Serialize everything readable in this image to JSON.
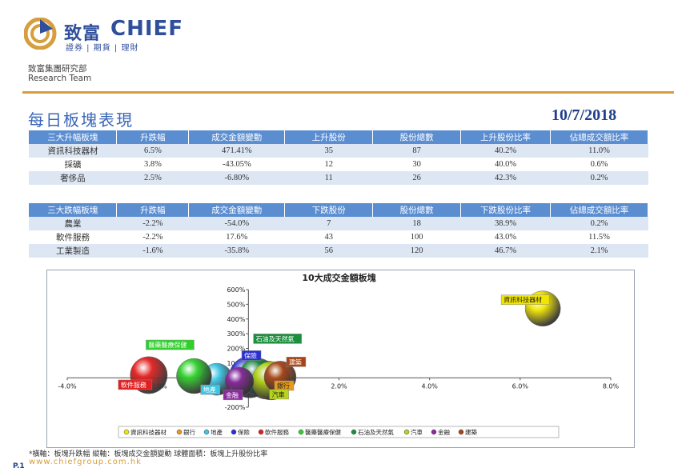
{
  "header": {
    "brand_cn": "致富",
    "brand_en": "CHIEF",
    "brand_sub": "證券 | 期貨 | 理財",
    "dept_cn": "致富集團研究部",
    "dept_en": "Research Team",
    "title": "每日板塊表現",
    "date": "10/7/2018",
    "accent_color": "#d69e3c",
    "brand_color": "#2f4f9c"
  },
  "table_up": {
    "headers": [
      "三大升幅板塊",
      "升跌幅",
      "成交金額變動",
      "上升股份",
      "股份總數",
      "上升股份比率",
      "佔總成交額比率"
    ],
    "rows": [
      [
        "資訊科技器材",
        "6.5%",
        "471.41%",
        "35",
        "87",
        "40.2%",
        "11.0%"
      ],
      [
        "採礦",
        "3.8%",
        "-43.05%",
        "12",
        "30",
        "40.0%",
        "0.6%"
      ],
      [
        "奢侈品",
        "2.5%",
        "-6.80%",
        "11",
        "26",
        "42.3%",
        "0.2%"
      ]
    ]
  },
  "table_down": {
    "headers": [
      "三大跌幅板塊",
      "升跌幅",
      "成交金額變動",
      "下跌股份",
      "股份總數",
      "下跌股份比率",
      "佔總成交額比率"
    ],
    "rows": [
      [
        "農業",
        "-2.2%",
        "-54.0%",
        "7",
        "18",
        "38.9%",
        "0.2%"
      ],
      [
        "軟件服務",
        "-2.2%",
        "17.6%",
        "43",
        "100",
        "43.0%",
        "11.5%"
      ],
      [
        "工業製造",
        "-1.6%",
        "-35.8%",
        "56",
        "120",
        "46.7%",
        "2.1%"
      ]
    ]
  },
  "chart_data": {
    "type": "scatter",
    "title": "10大成交金額板塊",
    "xlim": [
      -0.04,
      0.08
    ],
    "ylim": [
      -2,
      6
    ],
    "x_ticks": [
      "-4.0%",
      "-2.0%",
      "0.0%",
      "2.0%",
      "4.0%",
      "6.0%",
      "8.0%"
    ],
    "y_ticks": [
      "-200%",
      "-100%",
      "0%",
      "100%",
      "200%",
      "300%",
      "400%",
      "500%",
      "600%"
    ],
    "series": [
      {
        "name": "資訊科技器材",
        "x": 0.065,
        "y": 4.71,
        "size": 0.402,
        "color": "#f2e600"
      },
      {
        "name": "銀行",
        "x": 0.004,
        "y": -0.15,
        "size": 0.45,
        "color": "#e89a18"
      },
      {
        "name": "地產",
        "x": -0.007,
        "y": -0.1,
        "size": 0.35,
        "color": "#3cc6e6"
      },
      {
        "name": "保險",
        "x": 0.0003,
        "y": 0.05,
        "size": 0.5,
        "color": "#2a2fd1"
      },
      {
        "name": "軟件服務",
        "x": -0.022,
        "y": 0.18,
        "size": 0.43,
        "color": "#e41e1e"
      },
      {
        "name": "醫藥醫療保健",
        "x": -0.012,
        "y": 0.12,
        "size": 0.4,
        "color": "#2ed12a"
      },
      {
        "name": "石油及天然氣",
        "x": 0.002,
        "y": 0.1,
        "size": 0.42,
        "color": "#1a8f3c"
      },
      {
        "name": "汽車",
        "x": 0.005,
        "y": -0.2,
        "size": 0.45,
        "color": "#b8d41a"
      },
      {
        "name": "金融",
        "x": -0.002,
        "y": -0.25,
        "size": 0.3,
        "color": "#8a2a9c"
      },
      {
        "name": "建築",
        "x": 0.007,
        "y": 0.05,
        "size": 0.35,
        "color": "#a8441a"
      }
    ]
  },
  "footnote": "*橫軸：板塊升跌幅      縱軸：板塊成交金額變動      球體面積：板塊上升股份比率",
  "website": "www.chiefgroup.com.hk",
  "page_no": "P.1"
}
